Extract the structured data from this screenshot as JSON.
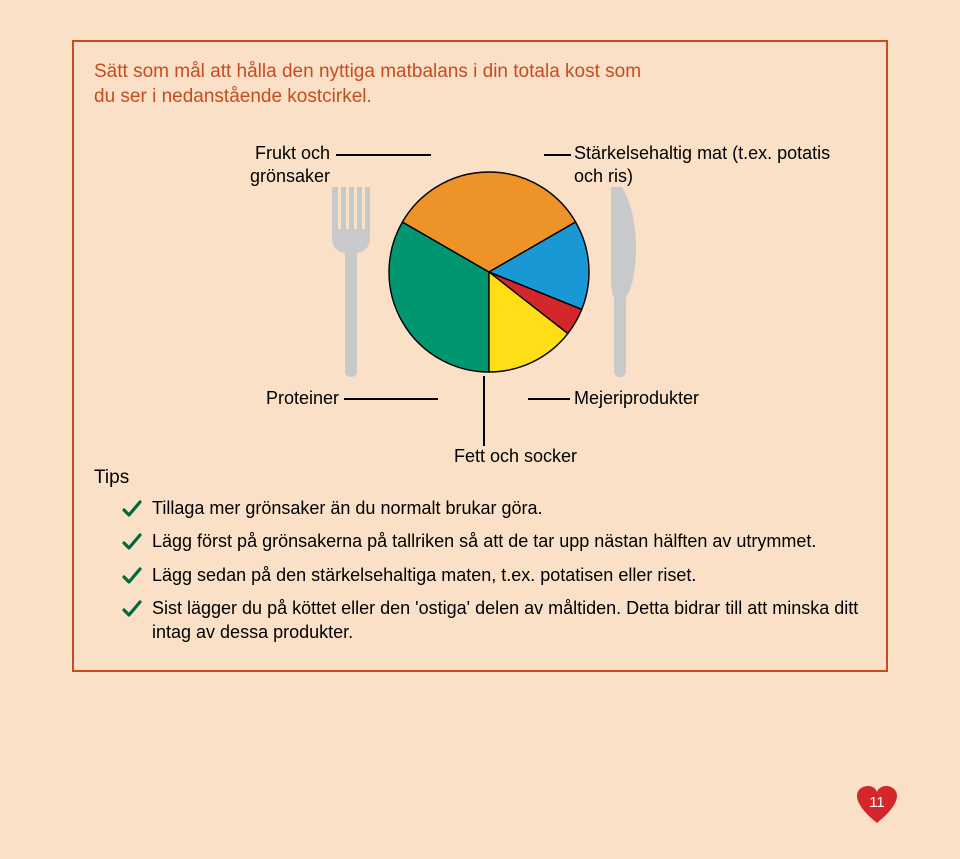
{
  "frame": {
    "border_color": "#c84b1f"
  },
  "background_color": "#fbe0c8",
  "intro": "Sätt som mål att hålla den nyttiga matbalans i din totala kost som du ser i nedanstående kostcirkel.",
  "labels": {
    "fruit": "Frukt och grönsaker",
    "starch": "Stärkelsehaltig mat (t.ex. potatis och ris)",
    "protein": "Proteiner",
    "dairy": "Mejeriprodukter",
    "fat": "Fett och socker"
  },
  "tips_title": "Tips",
  "tips": [
    "Tillaga mer grönsaker än du normalt brukar göra.",
    "Lägg först på grönsakerna på tallriken så att de tar upp nästan hälften av utrymmet.",
    "Lägg sedan på den stärkelsehaltiga maten, t.ex. potatisen eller riset.",
    "Sist lägger du på köttet eller den 'ostiga' delen av måltiden. Detta bidrar till att minska ditt intag av dessa produkter."
  ],
  "check_color": "#006a3b",
  "utensil_color": "#c8c9cb",
  "pie": {
    "type": "pie",
    "outline": "#000000",
    "stroke_width": 1.4,
    "slices": [
      {
        "name": "fruit",
        "start": 180,
        "end": 300,
        "color": "#009672"
      },
      {
        "name": "starch",
        "start": 300,
        "end": 60,
        "color": "#ee9327"
      },
      {
        "name": "dairy",
        "start": 60,
        "end": 112,
        "color": "#1a98d5"
      },
      {
        "name": "fat",
        "start": 112,
        "end": 128,
        "color": "#d4272c"
      },
      {
        "name": "protein",
        "start": 128,
        "end": 180,
        "color": "#ffdd17"
      }
    ]
  },
  "page_number": "11",
  "heart_color": "#d4272c"
}
